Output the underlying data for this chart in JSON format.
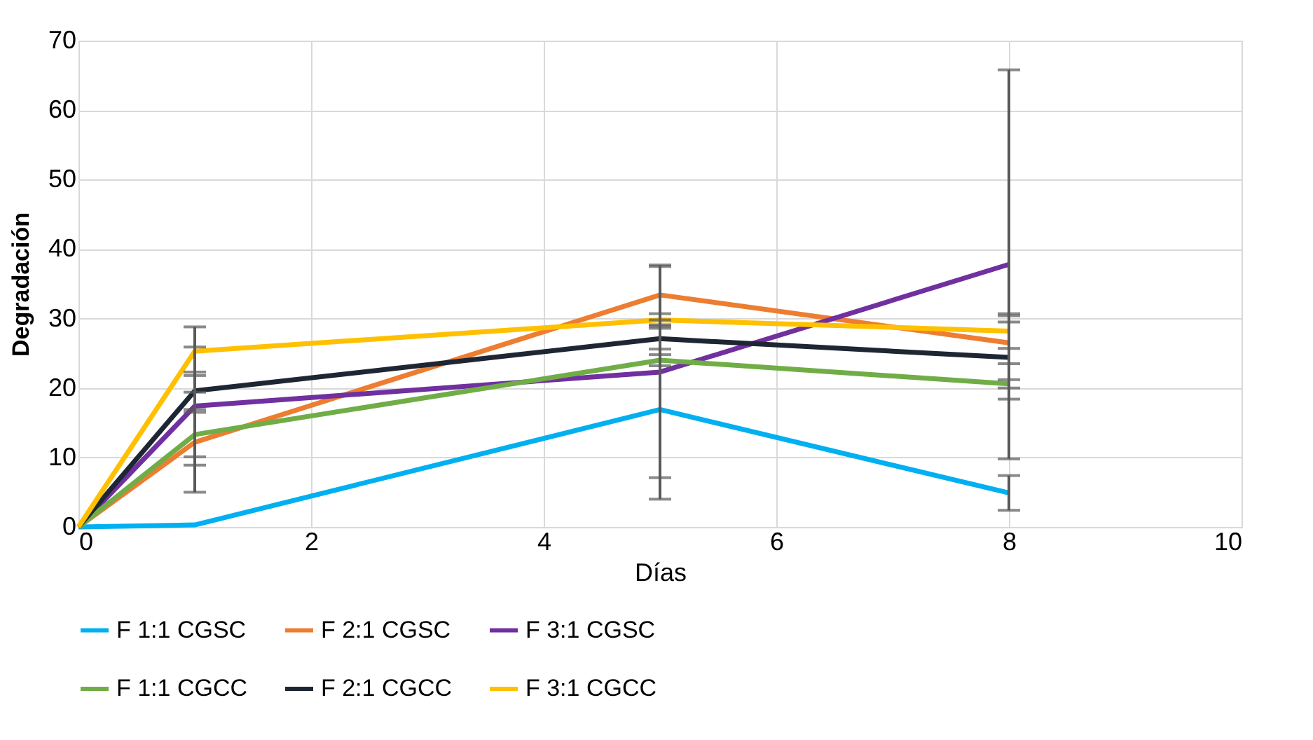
{
  "chart_data": {
    "type": "line",
    "xlabel": "Días",
    "ylabel": "Degradación",
    "x": [
      0,
      1,
      5,
      8
    ],
    "series": [
      {
        "name": "F 1:1 CGSC",
        "color": "#00b0f0",
        "values": [
          0,
          0.3,
          16.9,
          4.9
        ],
        "errors": [
          null,
          null,
          12.9,
          2.5
        ]
      },
      {
        "name": "F 2:1 CGSC",
        "color": "#ed7d31",
        "values": [
          0,
          12.2,
          33.4,
          26.5
        ],
        "errors": [
          null,
          7.2,
          4.3,
          3
        ]
      },
      {
        "name": "F 3:1  CGSC",
        "color": "#7030a0",
        "values": [
          0,
          17.4,
          22.3,
          37.8
        ],
        "errors": [
          null,
          8.5,
          15.2,
          28
        ]
      },
      {
        "name": "F 1:1 CGCC",
        "color": "#70ad47",
        "values": [
          0,
          13.3,
          24,
          20.6
        ],
        "errors": [
          null,
          3.2,
          0.8,
          0.6
        ]
      },
      {
        "name": "F 2:1 CGCC",
        "color": "#1f2633",
        "values": [
          0,
          19.6,
          27.1,
          24.4
        ],
        "errors": [
          null,
          2.7,
          1.5,
          6
        ]
      },
      {
        "name": "F 3:1 CGCC",
        "color": "#ffc000",
        "values": [
          0,
          25.3,
          29.8,
          28.2
        ],
        "errors": [
          null,
          3.5,
          0.9,
          2.5
        ]
      }
    ],
    "xlim": [
      0,
      10
    ],
    "xticks": [
      0,
      2,
      4,
      6,
      8,
      10
    ],
    "ylim": [
      0,
      70
    ],
    "yticks": [
      0,
      10,
      20,
      30,
      40,
      50,
      60,
      70
    ],
    "grid": true,
    "legend": "bottom",
    "marker": "none",
    "line_style": "solid"
  }
}
